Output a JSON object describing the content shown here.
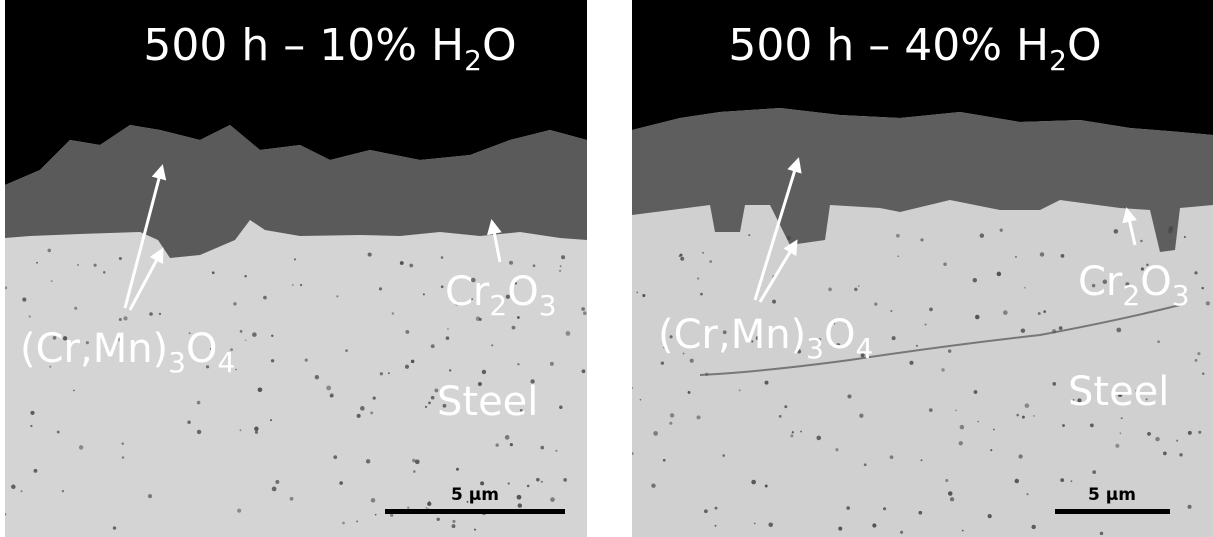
{
  "panels": [
    {
      "title": [
        "500 h – 10% H",
        "2",
        "O"
      ],
      "spinel_label": [
        "(Cr,Mn)",
        "3",
        "O",
        "4"
      ],
      "chromia_label": [
        "Cr",
        "2",
        "O",
        "3"
      ],
      "steel_label": "Steel",
      "scale_bar": "5 µm"
    },
    {
      "title": [
        "500 h – 40% H",
        "2",
        "O"
      ],
      "spinel_label": [
        "(Cr,Mn)",
        "3",
        "O",
        "4"
      ],
      "chromia_label": [
        "Cr",
        "2",
        "O",
        "3"
      ],
      "steel_label": "Steel",
      "scale_bar": "5 µm"
    }
  ]
}
